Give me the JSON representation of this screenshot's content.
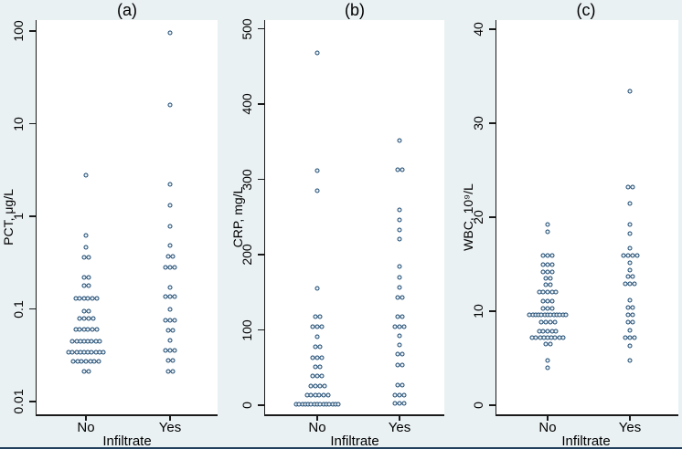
{
  "figure": {
    "background_color": "#eaf1f3",
    "plot_background_color": "#ffffff",
    "marker_color": "#1a476f",
    "axis_color": "#1a1a1a",
    "bottom_border_color": "#23405e"
  },
  "chart_data": [
    {
      "type": "scatter",
      "subtype": "strip-dotplot",
      "panel": "a",
      "title": "(a)",
      "ylabel": "PCT, μg/L",
      "xlabel": "Infiltrate",
      "yscale": "log",
      "ytick_values": [
        0.01,
        0.1,
        1,
        10,
        100
      ],
      "ytick_labels": [
        "0.01",
        "0.1",
        "1",
        "10",
        "100"
      ],
      "ylim": [
        0.008,
        150
      ],
      "categories": [
        "No",
        "Yes"
      ],
      "series": [
        {
          "name": "No",
          "points": [
            [
              2.8,
              1
            ],
            [
              0.62,
              1
            ],
            [
              0.46,
              1
            ],
            [
              0.36,
              2
            ],
            [
              0.22,
              2
            ],
            [
              0.18,
              2
            ],
            [
              0.13,
              6
            ],
            [
              0.095,
              2
            ],
            [
              0.078,
              4
            ],
            [
              0.06,
              6
            ],
            [
              0.045,
              8
            ],
            [
              0.034,
              10
            ],
            [
              0.027,
              7
            ],
            [
              0.021,
              2
            ]
          ]
        },
        {
          "name": "Yes",
          "points": [
            [
              95,
              1
            ],
            [
              16,
              1
            ],
            [
              2.2,
              1
            ],
            [
              1.3,
              1
            ],
            [
              0.78,
              1
            ],
            [
              0.48,
              1
            ],
            [
              0.37,
              2
            ],
            [
              0.28,
              3
            ],
            [
              0.17,
              1
            ],
            [
              0.135,
              3
            ],
            [
              0.1,
              1
            ],
            [
              0.076,
              3
            ],
            [
              0.059,
              2
            ],
            [
              0.046,
              1
            ],
            [
              0.036,
              3
            ],
            [
              0.028,
              2
            ],
            [
              0.021,
              2
            ]
          ]
        }
      ]
    },
    {
      "type": "scatter",
      "subtype": "strip-dotplot",
      "panel": "b",
      "title": "(b)",
      "ylabel": "CRP, mg/L",
      "xlabel": "Infiltrate",
      "yscale": "linear",
      "ytick_values": [
        0,
        100,
        200,
        300,
        400,
        500
      ],
      "ytick_labels": [
        "0",
        "100",
        "200",
        "300",
        "400",
        "500"
      ],
      "ylim": [
        -10,
        510
      ],
      "categories": [
        "No",
        "Yes"
      ],
      "series": [
        {
          "name": "No",
          "points": [
            [
              468,
              1
            ],
            [
              312,
              1
            ],
            [
              285,
              1
            ],
            [
              155,
              1
            ],
            [
              118,
              2
            ],
            [
              104,
              3
            ],
            [
              91,
              1
            ],
            [
              77,
              2
            ],
            [
              63,
              3
            ],
            [
              51,
              2
            ],
            [
              39,
              3
            ],
            [
              26,
              4
            ],
            [
              13,
              6
            ],
            [
              1,
              15
            ]
          ]
        },
        {
          "name": "Yes",
          "points": [
            [
              352,
              1
            ],
            [
              313,
              2
            ],
            [
              259,
              1
            ],
            [
              246,
              1
            ],
            [
              233,
              1
            ],
            [
              221,
              1
            ],
            [
              184,
              1
            ],
            [
              170,
              1
            ],
            [
              156,
              1
            ],
            [
              143,
              2
            ],
            [
              118,
              2
            ],
            [
              104,
              3
            ],
            [
              92,
              1
            ],
            [
              80,
              1
            ],
            [
              68,
              2
            ],
            [
              53,
              2
            ],
            [
              27,
              2
            ],
            [
              13,
              3
            ],
            [
              2,
              3
            ]
          ]
        }
      ]
    },
    {
      "type": "scatter",
      "subtype": "strip-dotplot",
      "panel": "c",
      "title": "(c)",
      "ylabel": "WBC, 10⁹/L",
      "xlabel": "Infiltrate",
      "yscale": "linear",
      "ytick_values": [
        0,
        10,
        20,
        30,
        40
      ],
      "ytick_labels": [
        "0",
        "10",
        "20",
        "30",
        "40"
      ],
      "ylim": [
        -1,
        41
      ],
      "categories": [
        "No",
        "Yes"
      ],
      "series": [
        {
          "name": "No",
          "points": [
            [
              19.2,
              1
            ],
            [
              18.4,
              1
            ],
            [
              15.9,
              3
            ],
            [
              15.0,
              3
            ],
            [
              14.2,
              3
            ],
            [
              13.5,
              2
            ],
            [
              12.8,
              2
            ],
            [
              12.0,
              5
            ],
            [
              11.1,
              3
            ],
            [
              10.3,
              3
            ],
            [
              9.6,
              13
            ],
            [
              8.8,
              4
            ],
            [
              7.9,
              5
            ],
            [
              7.2,
              9
            ],
            [
              6.5,
              2
            ],
            [
              4.8,
              1
            ],
            [
              4.0,
              1
            ]
          ]
        },
        {
          "name": "Yes",
          "points": [
            [
              33.4,
              1
            ],
            [
              23.2,
              2
            ],
            [
              21.5,
              1
            ],
            [
              19.2,
              1
            ],
            [
              18.3,
              1
            ],
            [
              16.7,
              1
            ],
            [
              15.9,
              4
            ],
            [
              15.1,
              1
            ],
            [
              14.4,
              1
            ],
            [
              13.7,
              2
            ],
            [
              12.9,
              3
            ],
            [
              11.2,
              1
            ],
            [
              10.4,
              2
            ],
            [
              9.6,
              2
            ],
            [
              8.8,
              2
            ],
            [
              8.0,
              1
            ],
            [
              7.2,
              3
            ],
            [
              6.3,
              1
            ],
            [
              4.8,
              1
            ]
          ]
        }
      ]
    }
  ]
}
